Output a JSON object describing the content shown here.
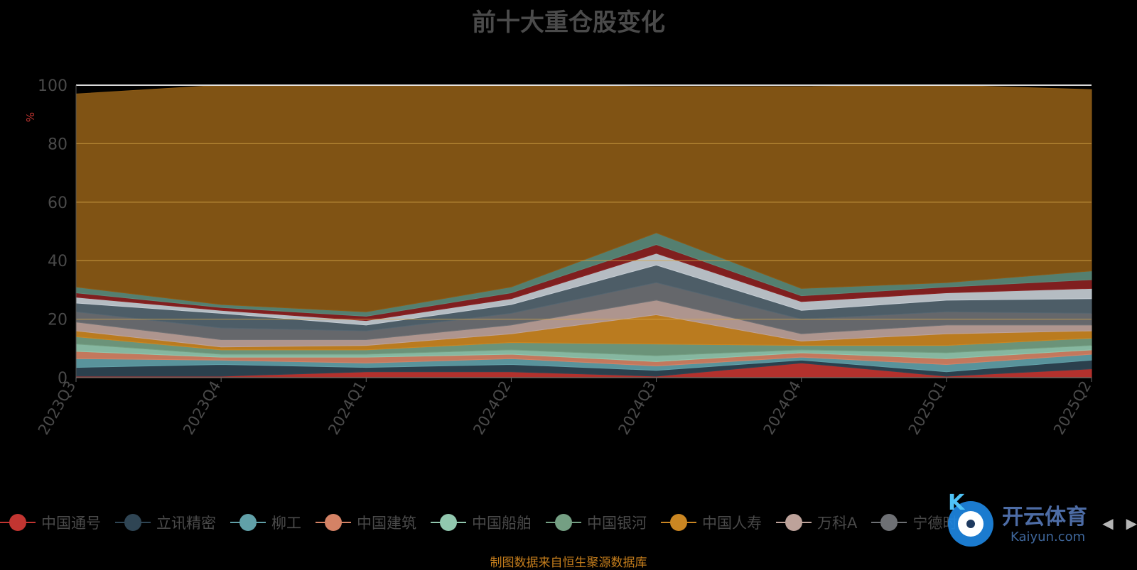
{
  "chart_data": {
    "type": "area",
    "title": "前十大重仓股变化",
    "ylabel": "%",
    "ylim": [
      0,
      100
    ],
    "yticks": [
      0,
      20,
      40,
      60,
      80,
      100
    ],
    "grid": true,
    "legend_position": "bottom",
    "x": [
      "2023Q3",
      "2023Q4",
      "2024Q1",
      "2024Q2",
      "2024Q3",
      "2024Q4",
      "2025Q1",
      "2025Q2"
    ],
    "series": [
      {
        "name": "中国通号",
        "color": "#c23531",
        "values": [
          0.5,
          0.5,
          2.0,
          2.0,
          0.5,
          5.0,
          0.5,
          3.0
        ]
      },
      {
        "name": "立讯精密",
        "color": "#2f4554",
        "values": [
          3.0,
          4.0,
          1.5,
          2.5,
          2.0,
          1.0,
          1.5,
          3.0
        ]
      },
      {
        "name": "柳工",
        "color": "#61a0a8",
        "values": [
          3.0,
          1.5,
          1.5,
          2.0,
          1.5,
          1.0,
          2.5,
          2.0
        ]
      },
      {
        "name": "中国建筑",
        "color": "#d48265",
        "values": [
          2.5,
          1.0,
          2.0,
          1.5,
          1.5,
          1.5,
          2.0,
          1.5
        ]
      },
      {
        "name": "中国船舶",
        "color": "#91c7ae",
        "values": [
          2.5,
          1.0,
          1.0,
          1.5,
          2.0,
          1.0,
          2.0,
          1.5
        ]
      },
      {
        "name": "中国银河",
        "color": "#749f83",
        "values": [
          2.5,
          1.5,
          1.5,
          2.5,
          4.0,
          1.5,
          2.5,
          2.5
        ]
      },
      {
        "name": "中国人寿",
        "color": "#ca8622",
        "values": [
          2.0,
          1.0,
          1.5,
          3.0,
          10.0,
          1.5,
          4.0,
          2.5
        ]
      },
      {
        "name": "万科A",
        "color": "#bda29a",
        "values": [
          3.0,
          2.5,
          2.0,
          3.0,
          5.0,
          2.5,
          3.0,
          2.0
        ]
      },
      {
        "name": "宁德时代",
        "color": "#6e7074",
        "values": [
          3.5,
          4.0,
          3.0,
          4.0,
          6.0,
          5.0,
          4.5,
          4.0
        ]
      },
      {
        "name": "",
        "color": "#546570",
        "values": [
          3.0,
          5.0,
          2.0,
          3.0,
          6.0,
          3.0,
          4.0,
          5.0
        ]
      },
      {
        "name": "",
        "color": "#c4ccd3",
        "values": [
          2.0,
          1.0,
          1.5,
          2.0,
          4.0,
          3.0,
          2.5,
          3.5
        ]
      },
      {
        "name": "",
        "color": "#8b2222",
        "values": [
          1.5,
          1.0,
          1.5,
          2.0,
          3.0,
          2.0,
          2.0,
          3.0
        ]
      },
      {
        "name": "",
        "color": "#5b8a7a",
        "values": [
          2.0,
          1.0,
          1.5,
          2.0,
          4.0,
          2.5,
          1.5,
          3.0
        ]
      },
      {
        "name": "",
        "color": "#8b5a16",
        "values": [
          66.0,
          76.0,
          78.0,
          70.0,
          50.0,
          69.0,
          68.0,
          62.0
        ]
      }
    ]
  },
  "legend": {
    "items": [
      {
        "label": "中国通号",
        "color": "#c23531"
      },
      {
        "label": "立讯精密",
        "color": "#2f4554"
      },
      {
        "label": "柳工",
        "color": "#61a0a8"
      },
      {
        "label": "中国建筑",
        "color": "#d48265"
      },
      {
        "label": "中国船舶",
        "color": "#91c7ae"
      },
      {
        "label": "中国银河",
        "color": "#749f83"
      },
      {
        "label": "中国人寿",
        "color": "#ca8622"
      },
      {
        "label": "万科A",
        "color": "#bda29a"
      },
      {
        "label": "宁德时代",
        "color": "#6e7074"
      }
    ],
    "prev_label": "◀",
    "next_label": "▶"
  },
  "watermark": {
    "brand": "开云体育",
    "site": "Kaiyun.com",
    "badge": "K"
  },
  "source_note": "制图数据来自恒生聚源数据库"
}
